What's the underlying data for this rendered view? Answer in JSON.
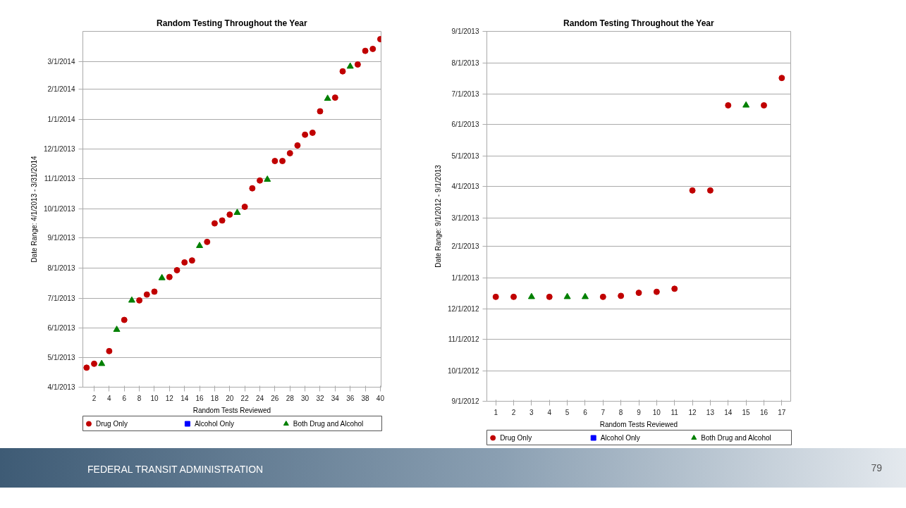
{
  "chart_data": [
    {
      "type": "scatter",
      "orientation": "horizontal",
      "title": "Random Testing Throughout the Year",
      "xlabel": "Random Tests Reviewed",
      "ylabel": "Date Range: 4/1/2013 - 3/31/2014",
      "xlim": [
        0.5,
        40.1
      ],
      "xticks": [
        2,
        4,
        6,
        8,
        10,
        12,
        14,
        16,
        18,
        20,
        22,
        24,
        26,
        28,
        30,
        32,
        34,
        36,
        38,
        40
      ],
      "ylim": [
        "2013-04-01",
        "2014-04-01"
      ],
      "yticks": [
        {
          "value": "2013-04-01",
          "label": "4/1/2013"
        },
        {
          "value": "2013-05-01",
          "label": "5/1/2013"
        },
        {
          "value": "2013-06-01",
          "label": "6/1/2013"
        },
        {
          "value": "2013-07-01",
          "label": "7/1/2013"
        },
        {
          "value": "2013-08-01",
          "label": "8/1/2013"
        },
        {
          "value": "2013-09-01",
          "label": "9/1/2013"
        },
        {
          "value": "2013-10-01",
          "label": "10/1/2013"
        },
        {
          "value": "2013-11-01",
          "label": "11/1/2013"
        },
        {
          "value": "2013-12-01",
          "label": "12/1/2013"
        },
        {
          "value": "2014-01-01",
          "label": "1/1/2014"
        },
        {
          "value": "2014-02-01",
          "label": "2/1/2014"
        },
        {
          "value": "2014-03-01",
          "label": "3/1/2014"
        }
      ],
      "grid": "y",
      "legend": "bottom",
      "series": [
        {
          "name": "Drug Only",
          "color": "#c00000",
          "marker": "circle",
          "values": [
            1,
            2,
            4,
            6,
            8,
            9,
            10,
            12,
            13,
            14,
            15,
            17,
            18,
            19,
            20,
            22,
            23,
            24,
            26,
            27,
            28,
            29,
            30,
            31,
            32,
            34,
            35,
            37,
            38,
            39,
            40
          ],
          "x": [
            "2013-04-21",
            "2013-04-25",
            "2013-05-08",
            "2013-06-09",
            "2013-06-29",
            "2013-07-05",
            "2013-07-08",
            "2013-07-23",
            "2013-07-30",
            "2013-08-07",
            "2013-08-09",
            "2013-08-28",
            "2013-09-16",
            "2013-09-19",
            "2013-09-25",
            "2013-10-03",
            "2013-10-22",
            "2013-10-30",
            "2013-11-19",
            "2013-11-19",
            "2013-11-27",
            "2013-12-05",
            "2013-12-16",
            "2013-12-18",
            "2014-01-09",
            "2014-01-23",
            "2014-02-19",
            "2014-02-26",
            "2014-03-12",
            "2014-03-14",
            "2014-03-24"
          ]
        },
        {
          "name": "Alcohol Only",
          "color": "#0000ff",
          "marker": "square"
        },
        {
          "name": "Both Drug and Alcohol",
          "color": "#008000",
          "marker": "triangle",
          "values": [
            3,
            5,
            7,
            11,
            16,
            21,
            25,
            33,
            36
          ],
          "x": [
            "2013-04-25",
            "2013-05-30",
            "2013-06-29",
            "2013-07-22",
            "2013-08-24",
            "2013-09-27",
            "2013-10-31",
            "2014-01-22",
            "2014-02-24"
          ]
        }
      ],
      "annotations": [
        "FEDERAL TRANSIT ADMINISTRATION",
        "79"
      ]
    },
    {
      "type": "scatter",
      "orientation": "horizontal",
      "title": "Random Testing Throughout the Year",
      "xlabel": "Random Tests Reviewed",
      "ylabel": "Date Range: 9/1/2012 - 9/1/2013",
      "xlim": [
        0.5,
        17.5
      ],
      "xticks": [
        1,
        2,
        3,
        4,
        5,
        6,
        7,
        8,
        9,
        10,
        11,
        12,
        13,
        14,
        15,
        16,
        17
      ],
      "ylim": [
        "2012-09-01",
        "2013-09-01"
      ],
      "yticks": [
        {
          "value": "2012-09-01",
          "label": "9/1/2012"
        },
        {
          "value": "2012-10-01",
          "label": "10/1/2012"
        },
        {
          "value": "2012-11-01",
          "label": "11/1/2012"
        },
        {
          "value": "2012-12-01",
          "label": "12/1/2012"
        },
        {
          "value": "2013-01-01",
          "label": "1/1/2013"
        },
        {
          "value": "2013-02-01",
          "label": "2/1/2013"
        },
        {
          "value": "2013-03-01",
          "label": "3/1/2013"
        },
        {
          "value": "2013-04-01",
          "label": "4/1/2013"
        },
        {
          "value": "2013-05-01",
          "label": "5/1/2013"
        },
        {
          "value": "2013-06-01",
          "label": "6/1/2013"
        },
        {
          "value": "2013-07-01",
          "label": "7/1/2013"
        },
        {
          "value": "2013-08-01",
          "label": "8/1/2013"
        },
        {
          "value": "2013-09-01",
          "label": "9/1/2013"
        }
      ],
      "grid": "y",
      "legend": "bottom",
      "series": [
        {
          "name": "Drug Only",
          "color": "#c00000",
          "marker": "circle",
          "values": [
            1,
            2,
            4,
            7,
            8,
            9,
            10,
            11,
            12,
            13,
            14,
            16,
            17
          ],
          "x": [
            "2012-12-13",
            "2012-12-13",
            "2012-12-13",
            "2012-12-13",
            "2012-12-14",
            "2012-12-17",
            "2012-12-18",
            "2012-12-21",
            "2013-03-28",
            "2013-03-28",
            "2013-06-20",
            "2013-06-20",
            "2013-07-17"
          ]
        },
        {
          "name": "Alcohol Only",
          "color": "#0000ff",
          "marker": "square"
        },
        {
          "name": "Both Drug and Alcohol",
          "color": "#008000",
          "marker": "triangle",
          "values": [
            3,
            5,
            6,
            15
          ],
          "x": [
            "2012-12-13",
            "2012-12-13",
            "2012-12-13",
            "2013-06-20"
          ]
        }
      ]
    }
  ]
}
